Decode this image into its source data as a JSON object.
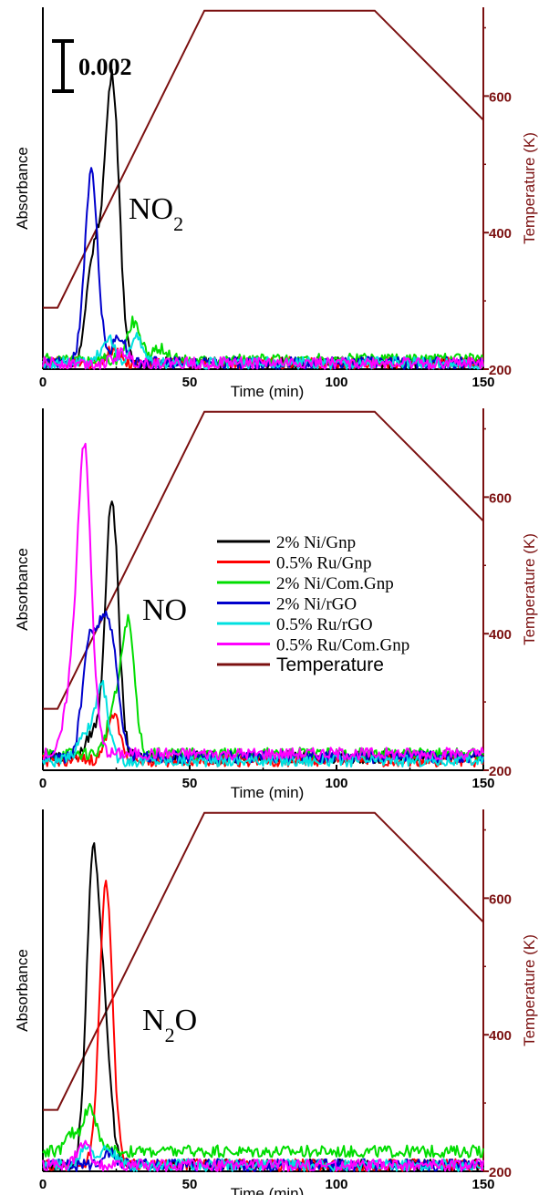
{
  "scale_bar_label": "0.002",
  "legend": [
    {
      "label": "2% Ni/Gnp",
      "color": "#000000"
    },
    {
      "label": "0.5% Ru/Gnp",
      "color": "#ff0000"
    },
    {
      "label": "2% Ni/Com.Gnp",
      "color": "#00dd00"
    },
    {
      "label": "2% Ni/rGO",
      "color": "#0000cc"
    },
    {
      "label": "0.5% Ru/rGO",
      "color": "#00e0e0"
    },
    {
      "label": "0.5% Ru/Com.Gnp",
      "color": "#ff00ff"
    },
    {
      "label": "Temperature",
      "color": "#7b1010"
    }
  ],
  "chart_data": [
    {
      "type": "line",
      "panel_label": {
        "main": "NO",
        "sub": "2",
        "tail": ""
      },
      "xlabel": "Time (min)",
      "ylabel": "Absorbance",
      "y2label": "Temperature (K)",
      "xlim": [
        0,
        150
      ],
      "y2lim": [
        200,
        730
      ],
      "xticks": [
        0,
        50,
        100,
        150
      ],
      "y2ticks": [
        200,
        400,
        600
      ],
      "temperature": {
        "x": [
          0,
          5,
          55,
          113,
          150
        ],
        "y": [
          290,
          290,
          725,
          725,
          565
        ]
      },
      "series": [
        {
          "name": "2% Ni/Gnp",
          "peaks": [
            {
              "t": 24,
              "h": 0.0072
            },
            {
              "t": 17,
              "h": 0.0028
            },
            {
              "t": 21,
              "h": 0.0025
            }
          ],
          "baseline": 0.0001
        },
        {
          "name": "0.5% Ru/Gnp",
          "peaks": [
            {
              "t": 24,
              "h": 0.0004
            }
          ],
          "baseline": 0.0001
        },
        {
          "name": "2% Ni/Com.Gnp",
          "peaks": [
            {
              "t": 31,
              "h": 0.0011
            },
            {
              "t": 40,
              "h": 0.0003
            }
          ],
          "baseline": 0.0002
        },
        {
          "name": "2% Ni/rGO",
          "peaks": [
            {
              "t": 16.5,
              "h": 0.0055
            },
            {
              "t": 26,
              "h": 0.0008
            }
          ],
          "baseline": 0.0001
        },
        {
          "name": "0.5% Ru/rGO",
          "peaks": [
            {
              "t": 22,
              "h": 0.0007
            },
            {
              "t": 32,
              "h": 0.0007
            }
          ],
          "baseline": 0.0001
        },
        {
          "name": "0.5% Ru/Com.Gnp",
          "peaks": [
            {
              "t": 27,
              "h": 0.0003
            }
          ],
          "baseline": 0.0001
        }
      ]
    },
    {
      "type": "line",
      "panel_label": {
        "main": "NO",
        "sub": "",
        "tail": ""
      },
      "xlabel": "Time (min)",
      "ylabel": "Absorbance",
      "y2label": "Temperature (K)",
      "xlim": [
        0,
        150
      ],
      "y2lim": [
        200,
        730
      ],
      "xticks": [
        0,
        50,
        100,
        150
      ],
      "y2ticks": [
        200,
        400,
        600
      ],
      "temperature": {
        "x": [
          0,
          5,
          55,
          113,
          150
        ],
        "y": [
          290,
          290,
          725,
          725,
          565
        ]
      },
      "series": [
        {
          "name": "2% Ni/Gnp",
          "peaks": [
            {
              "t": 23.5,
              "h": 0.0075
            },
            {
              "t": 17,
              "h": 0.0007
            }
          ],
          "baseline": 0.0003
        },
        {
          "name": "0.5% Ru/Gnp",
          "peaks": [
            {
              "t": 24,
              "h": 0.0014
            }
          ],
          "baseline": 0.0002
        },
        {
          "name": "2% Ni/Com.Gnp",
          "peaks": [
            {
              "t": 29,
              "h": 0.0038
            },
            {
              "t": 24,
              "h": 0.0012
            }
          ],
          "baseline": 0.0004
        },
        {
          "name": "2% Ni/rGO",
          "peaks": [
            {
              "t": 15.5,
              "h": 0.003
            },
            {
              "t": 20,
              "h": 0.0032
            },
            {
              "t": 24,
              "h": 0.0028
            }
          ],
          "baseline": 0.0003
        },
        {
          "name": "0.5% Ru/rGO",
          "peaks": [
            {
              "t": 20,
              "h": 0.0022
            },
            {
              "t": 14,
              "h": 0.0008
            }
          ],
          "baseline": 0.0002
        },
        {
          "name": "0.5% Ru/Com.Gnp",
          "peaks": [
            {
              "t": 14,
              "h": 0.0085
            },
            {
              "t": 9.5,
              "h": 0.0018
            },
            {
              "t": 17,
              "h": 0.0008
            }
          ],
          "baseline": 0.0004
        }
      ]
    },
    {
      "type": "line",
      "panel_label": {
        "main": "N",
        "sub": "2",
        "tail": "O"
      },
      "xlabel": "Time (min)",
      "ylabel": "Absorbance",
      "y2label": "Temperature (K)",
      "xlim": [
        0,
        150
      ],
      "y2lim": [
        200,
        730
      ],
      "xticks": [
        0,
        50,
        100,
        150
      ],
      "y2ticks": [
        200,
        400,
        600
      ],
      "temperature": {
        "x": [
          0,
          5,
          55,
          113,
          150
        ],
        "y": [
          290,
          290,
          725,
          725,
          565
        ]
      },
      "series": [
        {
          "name": "2% Ni/Gnp",
          "peaks": [
            {
              "t": 17,
              "h": 0.0084
            },
            {
              "t": 21,
              "h": 0.0035
            }
          ],
          "baseline": 0.0001
        },
        {
          "name": "0.5% Ru/Gnp",
          "peaks": [
            {
              "t": 21.5,
              "h": 0.0082
            }
          ],
          "baseline": 0.0001
        },
        {
          "name": "2% Ni/Com.Gnp",
          "peaks": [
            {
              "t": 16,
              "h": 0.0013
            },
            {
              "t": 10,
              "h": 0.0005
            }
          ],
          "baseline": 0.0005
        },
        {
          "name": "2% Ni/rGO",
          "peaks": [
            {
              "t": 22,
              "h": 0.0004
            }
          ],
          "baseline": 0.0001
        },
        {
          "name": "0.5% Ru/rGO",
          "peaks": [
            {
              "t": 15,
              "h": 0.0006
            },
            {
              "t": 22,
              "h": 0.0005
            }
          ],
          "baseline": 0.0001
        },
        {
          "name": "0.5% Ru/Com.Gnp",
          "peaks": [
            {
              "t": 14,
              "h": 0.0006
            }
          ],
          "baseline": 0.0001
        }
      ]
    }
  ]
}
